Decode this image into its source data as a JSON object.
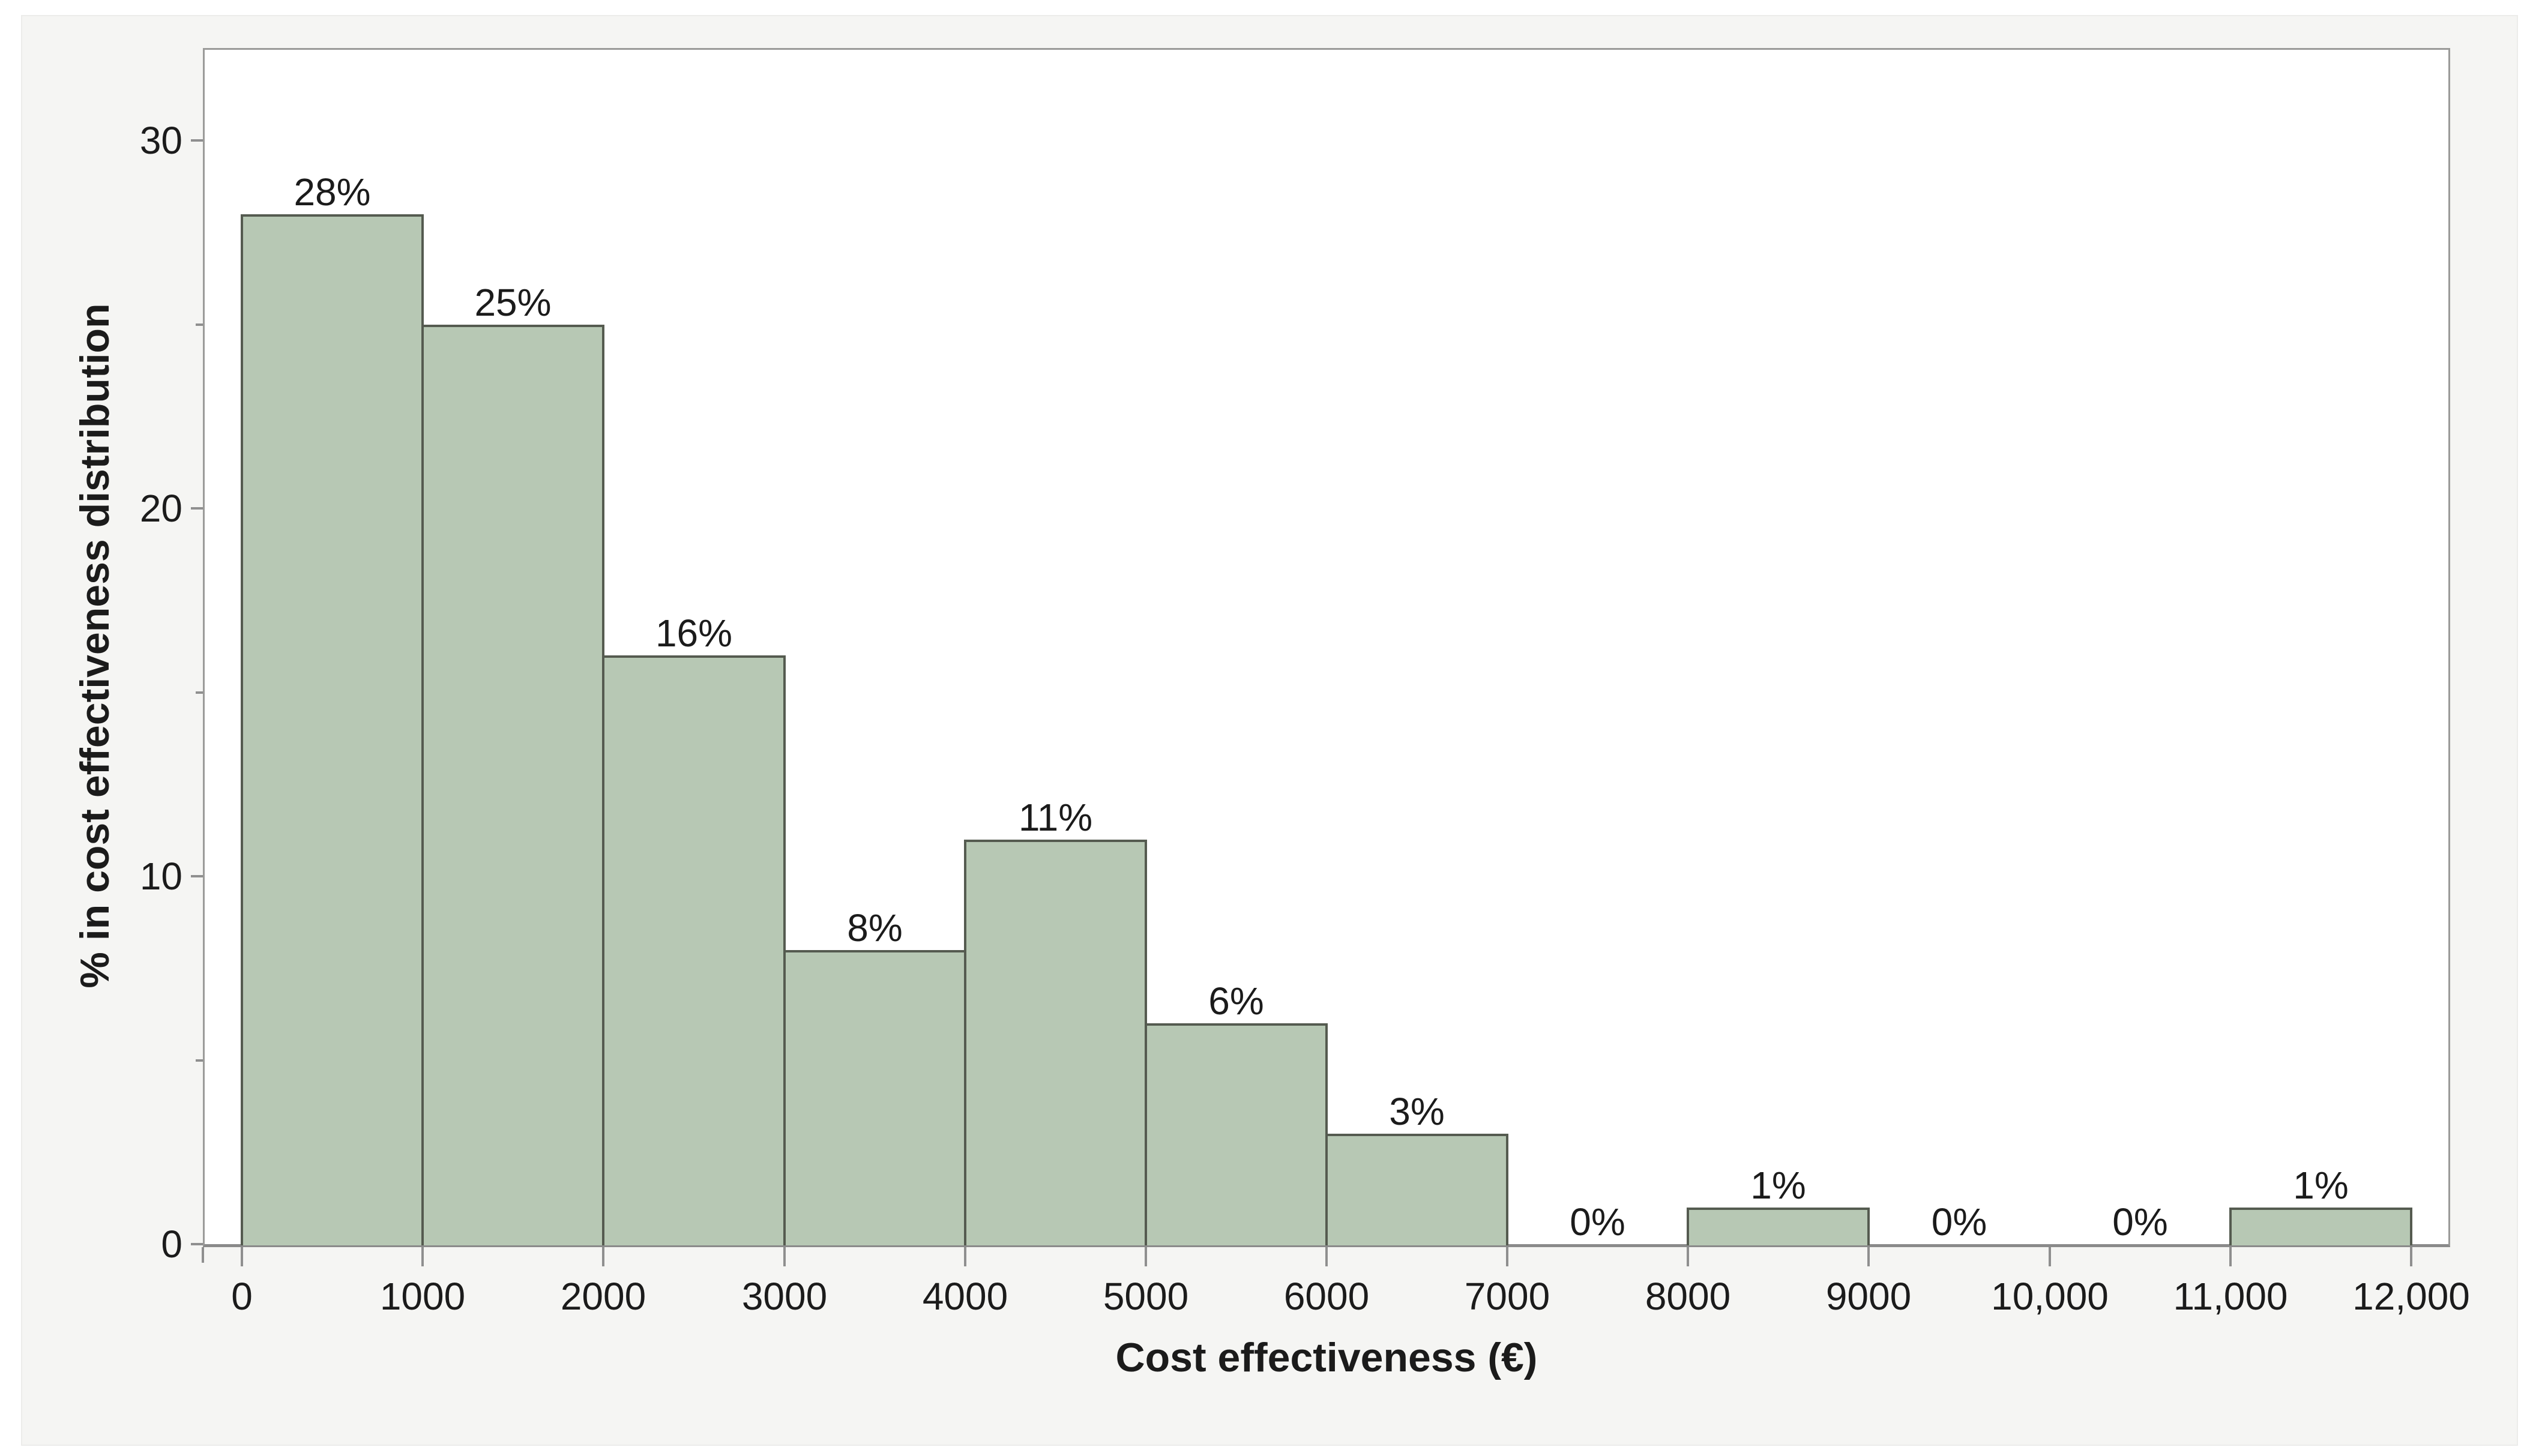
{
  "figure": {
    "background_color": "#f5f5f3",
    "plot_background_color": "#ffffff"
  },
  "chart_data": {
    "type": "bar",
    "subtype": "histogram",
    "title": "",
    "xlabel": "Cost effectiveness (€)",
    "ylabel": "% in cost effectiveness distribution",
    "categories": [
      "0–1000",
      "1000–2000",
      "2000–3000",
      "3000–4000",
      "4000–5000",
      "5000–6000",
      "6000–7000",
      "7000–8000",
      "8000–9000",
      "9000–10,000",
      "10,000–11,000",
      "11,000–12,000"
    ],
    "bin_edges": [
      0,
      1000,
      2000,
      3000,
      4000,
      5000,
      6000,
      7000,
      8000,
      9000,
      10000,
      11000,
      12000
    ],
    "values": [
      28,
      25,
      16,
      8,
      11,
      6,
      3,
      0,
      1,
      0,
      0,
      1
    ],
    "bar_labels": [
      "28%",
      "25%",
      "16%",
      "8%",
      "11%",
      "6%",
      "3%",
      "0%",
      "1%",
      "0%",
      "0%",
      "1%"
    ],
    "x_tick_values": [
      0,
      1000,
      2000,
      3000,
      4000,
      5000,
      6000,
      7000,
      8000,
      9000,
      10000,
      11000,
      12000
    ],
    "x_tick_labels": [
      "0",
      "1000",
      "2000",
      "3000",
      "4000",
      "5000",
      "6000",
      "7000",
      "8000",
      "9000",
      "10,000",
      "11,000",
      "12,000"
    ],
    "y_tick_values": [
      0,
      10,
      20,
      30
    ],
    "y_tick_labels": [
      "0",
      "10",
      "20",
      "30"
    ],
    "y_minor_tick_values": [
      5,
      15,
      25
    ],
    "xlim": [
      -216,
      12216
    ],
    "ylim": [
      0,
      32.52
    ],
    "grid": false,
    "legend": false,
    "colors": {
      "bar_fill": "#b7c8b4",
      "bar_border": "#555b50",
      "axis": "#8f8f8f",
      "plot_border": "#9b9b99",
      "text": "#1b1b1b"
    }
  }
}
